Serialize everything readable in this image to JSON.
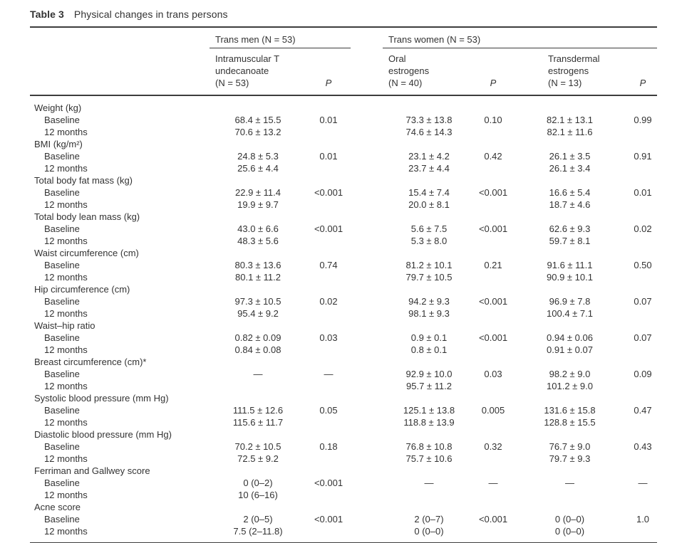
{
  "title": {
    "label": "Table 3",
    "text": "Physical changes in trans persons"
  },
  "header": {
    "trans_men": "Trans men (N = 53)",
    "trans_women": "Trans women (N = 53)",
    "col_trans_men": "Intramuscular T\nundecanoate\n(N = 53)",
    "col_oral": "Oral\nestrogens\n(N = 40)",
    "col_transdermal": "Transdermal\nestrogens\n(N = 13)",
    "p": "P"
  },
  "sections": [
    {
      "label": "Weight (kg)",
      "rows": [
        {
          "label": "Baseline",
          "v1": "68.4 ± 15.5",
          "p1": "0.01",
          "v2": "73.3 ± 13.8",
          "p2": "0.10",
          "v3": "82.1 ± 13.1",
          "p3": "0.99"
        },
        {
          "label": "12 months",
          "v1": "70.6 ± 13.2",
          "p1": "",
          "v2": "74.6 ± 14.3",
          "p2": "",
          "v3": "82.1 ± 11.6",
          "p3": ""
        }
      ]
    },
    {
      "label": "BMI (kg/m²)",
      "rows": [
        {
          "label": "Baseline",
          "v1": "24.8 ± 5.3",
          "p1": "0.01",
          "v2": "23.1 ± 4.2",
          "p2": "0.42",
          "v3": "26.1 ± 3.5",
          "p3": "0.91"
        },
        {
          "label": "12 months",
          "v1": "25.6 ± 4.4",
          "p1": "",
          "v2": "23.7 ± 4.4",
          "p2": "",
          "v3": "26.1 ± 3.4",
          "p3": ""
        }
      ]
    },
    {
      "label": "Total body fat mass (kg)",
      "rows": [
        {
          "label": "Baseline",
          "v1": "22.9 ± 11.4",
          "p1": "<0.001",
          "v2": "15.4 ± 7.4",
          "p2": "<0.001",
          "v3": "16.6 ± 5.4",
          "p3": "0.01"
        },
        {
          "label": "12 months",
          "v1": "19.9 ± 9.7",
          "p1": "",
          "v2": "20.0 ± 8.1",
          "p2": "",
          "v3": "18.7 ± 4.6",
          "p3": ""
        }
      ]
    },
    {
      "label": "Total body lean mass (kg)",
      "rows": [
        {
          "label": "Baseline",
          "v1": "43.0 ± 6.6",
          "p1": "<0.001",
          "v2": "5.6 ± 7.5",
          "p2": "<0.001",
          "v3": "62.6 ± 9.3",
          "p3": "0.02"
        },
        {
          "label": "12 months",
          "v1": "48.3 ± 5.6",
          "p1": "",
          "v2": "5.3 ± 8.0",
          "p2": "",
          "v3": "59.7 ± 8.1",
          "p3": ""
        }
      ]
    },
    {
      "label": "Waist circumference (cm)",
      "rows": [
        {
          "label": "Baseline",
          "v1": "80.3 ± 13.6",
          "p1": "0.74",
          "v2": "81.2 ± 10.1",
          "p2": "0.21",
          "v3": "91.6 ± 11.1",
          "p3": "0.50"
        },
        {
          "label": "12 months",
          "v1": "80.1 ± 11.2",
          "p1": "",
          "v2": "79.7 ± 10.5",
          "p2": "",
          "v3": "90.9 ± 10.1",
          "p3": ""
        }
      ]
    },
    {
      "label": "Hip circumference (cm)",
      "rows": [
        {
          "label": "Baseline",
          "v1": "97.3 ± 10.5",
          "p1": "0.02",
          "v2": "94.2 ± 9.3",
          "p2": "<0.001",
          "v3": "96.9 ± 7.8",
          "p3": "0.07"
        },
        {
          "label": "12 months",
          "v1": "95.4 ± 9.2",
          "p1": "",
          "v2": "98.1 ± 9.3",
          "p2": "",
          "v3": "100.4 ± 7.1",
          "p3": ""
        }
      ]
    },
    {
      "label": "Waist–hip ratio",
      "rows": [
        {
          "label": "Baseline",
          "v1": "0.82 ± 0.09",
          "p1": "0.03",
          "v2": "0.9 ± 0.1",
          "p2": "<0.001",
          "v3": "0.94 ± 0.06",
          "p3": "0.07"
        },
        {
          "label": "12 months",
          "v1": "0.84 ± 0.08",
          "p1": "",
          "v2": "0.8 ± 0.1",
          "p2": "",
          "v3": "0.91 ± 0.07",
          "p3": ""
        }
      ]
    },
    {
      "label": "Breast circumference (cm)*",
      "rows": [
        {
          "label": "Baseline",
          "v1": "—",
          "p1": "—",
          "v2": "92.9 ± 10.0",
          "p2": "0.03",
          "v3": "98.2 ± 9.0",
          "p3": "0.09"
        },
        {
          "label": "12 months",
          "v1": "",
          "p1": "",
          "v2": "95.7 ± 11.2",
          "p2": "",
          "v3": "101.2 ± 9.0",
          "p3": ""
        }
      ]
    },
    {
      "label": "Systolic blood pressure (mm Hg)",
      "rows": [
        {
          "label": "Baseline",
          "v1": "111.5 ± 12.6",
          "p1": "0.05",
          "v2": "125.1 ± 13.8",
          "p2": "0.005",
          "v3": "131.6 ± 15.8",
          "p3": "0.47"
        },
        {
          "label": "12 months",
          "v1": "115.6 ± 11.7",
          "p1": "",
          "v2": "118.8 ± 13.9",
          "p2": "",
          "v3": "128.8 ± 15.5",
          "p3": ""
        }
      ]
    },
    {
      "label": "Diastolic blood pressure (mm Hg)",
      "rows": [
        {
          "label": "Baseline",
          "v1": "70.2 ± 10.5",
          "p1": "0.18",
          "v2": "76.8 ± 10.8",
          "p2": "0.32",
          "v3": "76.7 ± 9.0",
          "p3": "0.43"
        },
        {
          "label": "12 months",
          "v1": "72.5 ± 9.2",
          "p1": "",
          "v2": "75.7 ± 10.6",
          "p2": "",
          "v3": "79.7 ± 9.3",
          "p3": ""
        }
      ]
    },
    {
      "label": "Ferriman and Gallwey score",
      "rows": [
        {
          "label": "Baseline",
          "v1": "0 (0–2)",
          "p1": "<0.001",
          "v2": "—",
          "p2": "—",
          "v3": "—",
          "p3": "—"
        },
        {
          "label": "12 months",
          "v1": "10 (6–16)",
          "p1": "",
          "v2": "",
          "p2": "",
          "v3": "",
          "p3": ""
        }
      ]
    },
    {
      "label": "Acne score",
      "rows": [
        {
          "label": "Baseline",
          "v1": "2 (0–5)",
          "p1": "<0.001",
          "v2": "2 (0–7)",
          "p2": "<0.001",
          "v3": "0 (0–0)",
          "p3": "1.0"
        },
        {
          "label": "12 months",
          "v1": "7.5 (2–11.8)",
          "p1": "",
          "v2": "0 (0–0)",
          "p2": "",
          "v3": "0 (0–0)",
          "p3": ""
        }
      ]
    }
  ],
  "colors": {
    "text": "#333333",
    "rule": "#3d3d3d",
    "background": "#ffffff"
  }
}
